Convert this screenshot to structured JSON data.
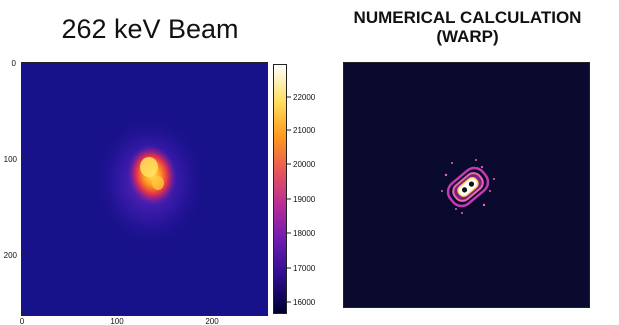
{
  "left_title": "262 keV Beam",
  "right_title": {
    "line1": "NUMERICAL CALCULATION",
    "line2": "(WARP)"
  },
  "left_plot": {
    "y_ticks": [
      "0",
      "100",
      "200"
    ],
    "x_ticks": [
      "0",
      "100",
      "200"
    ]
  },
  "colorbar": {
    "ticks": [
      "22000",
      "21000",
      "20000",
      "19000",
      "18000",
      "17000",
      "16000"
    ],
    "colors": [
      "#000033",
      "#2a0d8a",
      "#6a1bb0",
      "#b52a9a",
      "#e8565a",
      "#ff9a1e",
      "#ffe060",
      "#ffffff"
    ]
  },
  "colors": {
    "left_bg": "#17118a",
    "right_bg": "#0a0a2e"
  }
}
